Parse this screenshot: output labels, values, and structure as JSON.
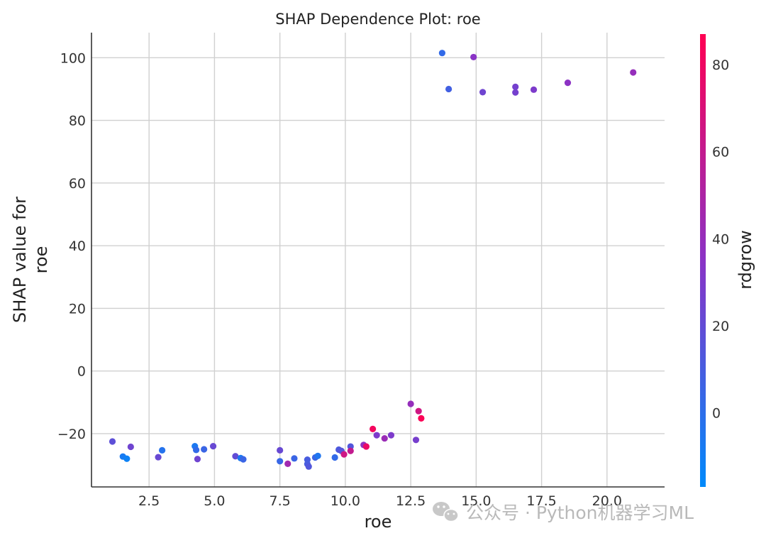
{
  "chart_data": {
    "type": "scatter",
    "title": "SHAP Dependence Plot: roe",
    "xlabel": "roe",
    "ylabel_lines": [
      "SHAP value for",
      "roe"
    ],
    "xlim": [
      0.3,
      22.2
    ],
    "ylim": [
      -37,
      108
    ],
    "xticks": [
      2.5,
      5.0,
      7.5,
      10.0,
      12.5,
      15.0,
      17.5,
      20.0
    ],
    "xtick_labels": [
      "2.5",
      "5.0",
      "7.5",
      "10.0",
      "12.5",
      "15.0",
      "17.5",
      "20.0"
    ],
    "yticks": [
      -20,
      0,
      20,
      40,
      60,
      80,
      100
    ],
    "ytick_labels": [
      "−20",
      "0",
      "20",
      "40",
      "60",
      "80",
      "100"
    ],
    "grid": true,
    "colorbar": {
      "label": "rdgrow",
      "range": [
        -17,
        87
      ],
      "ticks": [
        0,
        20,
        40,
        60,
        80
      ],
      "tick_labels": [
        "0",
        "20",
        "40",
        "60",
        "80"
      ],
      "colormap": [
        "#008afb",
        "#ff0052"
      ]
    },
    "points": [
      {
        "x": 1.1,
        "y": -22.5,
        "c": 18
      },
      {
        "x": 1.5,
        "y": -27.3,
        "c": -8
      },
      {
        "x": 1.65,
        "y": -28.0,
        "c": -12
      },
      {
        "x": 1.8,
        "y": -24.2,
        "c": 25
      },
      {
        "x": 2.85,
        "y": -27.5,
        "c": 22
      },
      {
        "x": 3.0,
        "y": -25.3,
        "c": -3
      },
      {
        "x": 4.25,
        "y": -24.0,
        "c": -7
      },
      {
        "x": 4.3,
        "y": -25.2,
        "c": 2
      },
      {
        "x": 4.35,
        "y": -28.1,
        "c": 25
      },
      {
        "x": 4.6,
        "y": -25.0,
        "c": 5
      },
      {
        "x": 4.95,
        "y": -24.0,
        "c": 22
      },
      {
        "x": 5.8,
        "y": -27.2,
        "c": 20
      },
      {
        "x": 6.0,
        "y": -27.8,
        "c": -6
      },
      {
        "x": 6.1,
        "y": -28.2,
        "c": 5
      },
      {
        "x": 7.5,
        "y": -25.3,
        "c": 22
      },
      {
        "x": 7.5,
        "y": -28.8,
        "c": 4
      },
      {
        "x": 7.8,
        "y": -29.6,
        "c": 45
      },
      {
        "x": 8.05,
        "y": -27.9,
        "c": 5
      },
      {
        "x": 8.55,
        "y": -28.3,
        "c": 10
      },
      {
        "x": 8.55,
        "y": -29.7,
        "c": 10
      },
      {
        "x": 8.6,
        "y": -30.5,
        "c": 14
      },
      {
        "x": 8.85,
        "y": -27.6,
        "c": 5
      },
      {
        "x": 8.95,
        "y": -27.1,
        "c": -5
      },
      {
        "x": 9.6,
        "y": -27.6,
        "c": 2
      },
      {
        "x": 9.75,
        "y": -25.1,
        "c": 12
      },
      {
        "x": 9.85,
        "y": -25.5,
        "c": 15
      },
      {
        "x": 9.95,
        "y": -26.6,
        "c": 65
      },
      {
        "x": 10.2,
        "y": -24.1,
        "c": 14
      },
      {
        "x": 10.2,
        "y": -25.5,
        "c": 60
      },
      {
        "x": 10.7,
        "y": -23.6,
        "c": 38
      },
      {
        "x": 10.8,
        "y": -24.1,
        "c": 78
      },
      {
        "x": 11.05,
        "y": -18.5,
        "c": 82
      },
      {
        "x": 11.2,
        "y": -20.5,
        "c": 30
      },
      {
        "x": 11.5,
        "y": -21.5,
        "c": 42
      },
      {
        "x": 11.75,
        "y": -20.5,
        "c": 30
      },
      {
        "x": 12.5,
        "y": -10.5,
        "c": 40
      },
      {
        "x": 12.7,
        "y": -22.0,
        "c": 28
      },
      {
        "x": 12.8,
        "y": -12.8,
        "c": 65
      },
      {
        "x": 12.9,
        "y": -15.1,
        "c": 85
      },
      {
        "x": 13.7,
        "y": 101.5,
        "c": 2
      },
      {
        "x": 13.95,
        "y": 90.0,
        "c": 8
      },
      {
        "x": 14.9,
        "y": 100.2,
        "c": 35
      },
      {
        "x": 15.25,
        "y": 89.0,
        "c": 25
      },
      {
        "x": 16.5,
        "y": 90.7,
        "c": 27
      },
      {
        "x": 16.5,
        "y": 88.9,
        "c": 27
      },
      {
        "x": 17.2,
        "y": 89.8,
        "c": 30
      },
      {
        "x": 18.5,
        "y": 92.0,
        "c": 36
      },
      {
        "x": 21.0,
        "y": 95.3,
        "c": 40
      }
    ]
  },
  "watermark": "公众号 · Python机器学习ML",
  "watermark_icon": "wechat-icon"
}
